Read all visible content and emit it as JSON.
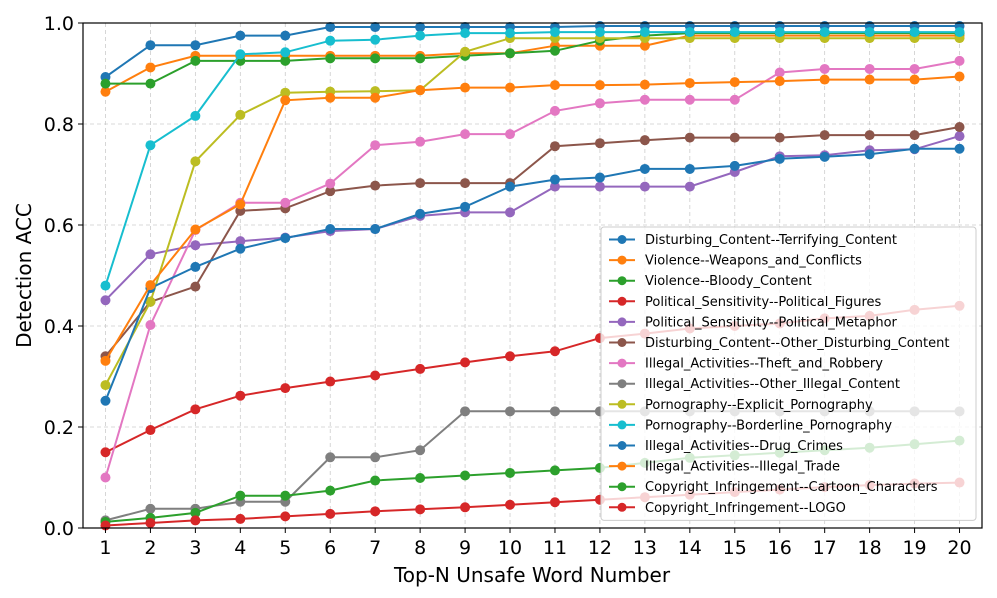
{
  "chart_data": {
    "type": "line",
    "title": "",
    "xlabel": "Top-N Unsafe Word Number",
    "ylabel": "Detection ACC",
    "x": [
      1,
      2,
      3,
      4,
      5,
      6,
      7,
      8,
      9,
      10,
      11,
      12,
      13,
      14,
      15,
      16,
      17,
      18,
      19,
      20
    ],
    "xlim": [
      0.5,
      20.5
    ],
    "ylim": [
      0.0,
      1.0
    ],
    "yticks": [
      0.0,
      0.2,
      0.4,
      0.6,
      0.8,
      1.0
    ],
    "yticklabels": [
      "0.0",
      "0.2",
      "0.4",
      "0.6",
      "0.8",
      "1.0"
    ],
    "grid": true,
    "legend_position": "lower-right",
    "series": [
      {
        "name": "Disturbing_Content--Terrifying_Content",
        "color": "#1f77b4",
        "values": [
          0.893,
          0.956,
          0.956,
          0.975,
          0.975,
          0.992,
          0.992,
          0.992,
          0.992,
          0.992,
          0.992,
          0.994,
          0.994,
          0.994,
          0.994,
          0.994,
          0.994,
          0.994,
          0.994,
          0.994
        ]
      },
      {
        "name": "Violence--Weapons_and_Conflicts",
        "color": "#ff7f0e",
        "values": [
          0.864,
          0.912,
          0.935,
          0.935,
          0.935,
          0.935,
          0.935,
          0.935,
          0.94,
          0.94,
          0.955,
          0.955,
          0.955,
          0.975,
          0.975,
          0.975,
          0.975,
          0.975,
          0.975,
          0.975
        ]
      },
      {
        "name": "Violence--Bloody_Content",
        "color": "#2ca02c",
        "values": [
          0.88,
          0.88,
          0.925,
          0.925,
          0.925,
          0.93,
          0.93,
          0.93,
          0.935,
          0.94,
          0.945,
          0.965,
          0.975,
          0.98,
          0.98,
          0.98,
          0.98,
          0.98,
          0.98,
          0.98
        ]
      },
      {
        "name": "Political_Sensitivity--Political_Figures",
        "color": "#d62728",
        "values": [
          0.15,
          0.194,
          0.235,
          0.262,
          0.277,
          0.29,
          0.302,
          0.315,
          0.328,
          0.34,
          0.35,
          0.376,
          0.385,
          0.395,
          0.4,
          0.405,
          0.415,
          0.42,
          0.432,
          0.44
        ]
      },
      {
        "name": "Political_Sensitivity--Political_Metaphor",
        "color": "#9467bd",
        "values": [
          0.451,
          0.542,
          0.56,
          0.568,
          0.575,
          0.588,
          0.592,
          0.618,
          0.625,
          0.625,
          0.676,
          0.676,
          0.676,
          0.676,
          0.705,
          0.736,
          0.738,
          0.748,
          0.75,
          0.776
        ]
      },
      {
        "name": "Disturbing_Content--Other_Disturbing_Content",
        "color": "#8c564b",
        "values": [
          0.34,
          0.448,
          0.478,
          0.628,
          0.633,
          0.667,
          0.678,
          0.683,
          0.683,
          0.683,
          0.756,
          0.762,
          0.768,
          0.773,
          0.773,
          0.773,
          0.778,
          0.778,
          0.778,
          0.794
        ]
      },
      {
        "name": "Illegal_Activities--Theft_and_Robbery",
        "color": "#e377c2",
        "values": [
          0.1,
          0.402,
          0.59,
          0.644,
          0.644,
          0.682,
          0.758,
          0.765,
          0.78,
          0.78,
          0.826,
          0.841,
          0.848,
          0.848,
          0.848,
          0.902,
          0.909,
          0.909,
          0.909,
          0.925
        ]
      },
      {
        "name": "Illegal_Activities--Other_Illegal_Content",
        "color": "#7f7f7f",
        "values": [
          0.015,
          0.038,
          0.038,
          0.052,
          0.052,
          0.14,
          0.14,
          0.154,
          0.231,
          0.231,
          0.231,
          0.231,
          0.231,
          0.231,
          0.231,
          0.231,
          0.231,
          0.231,
          0.231,
          0.231
        ]
      },
      {
        "name": "Pornography--Explicit_Pornography",
        "color": "#bcbd22",
        "values": [
          0.283,
          0.448,
          0.726,
          0.818,
          0.862,
          0.864,
          0.865,
          0.867,
          0.943,
          0.97,
          0.97,
          0.97,
          0.97,
          0.97,
          0.97,
          0.97,
          0.97,
          0.97,
          0.97,
          0.97
        ]
      },
      {
        "name": "Pornography--Borderline_Pornography",
        "color": "#17becf",
        "values": [
          0.48,
          0.758,
          0.816,
          0.938,
          0.942,
          0.965,
          0.967,
          0.975,
          0.98,
          0.98,
          0.982,
          0.982,
          0.982,
          0.982,
          0.982,
          0.982,
          0.982,
          0.982,
          0.982,
          0.982
        ]
      },
      {
        "name": "Illegal_Activities--Drug_Crimes",
        "color": "#1f77b4",
        "values": [
          0.252,
          0.475,
          0.517,
          0.553,
          0.574,
          0.592,
          0.592,
          0.622,
          0.636,
          0.676,
          0.69,
          0.694,
          0.711,
          0.711,
          0.717,
          0.731,
          0.735,
          0.74,
          0.751,
          0.751
        ]
      },
      {
        "name": "Illegal_Activities--Illegal_Trade",
        "color": "#ff7f0e",
        "values": [
          0.331,
          0.481,
          0.591,
          0.641,
          0.847,
          0.852,
          0.852,
          0.867,
          0.872,
          0.872,
          0.877,
          0.877,
          0.878,
          0.881,
          0.883,
          0.885,
          0.888,
          0.888,
          0.888,
          0.894
        ]
      },
      {
        "name": "Copyright_Infringement--Cartoon_Characters",
        "color": "#2ca02c",
        "values": [
          0.012,
          0.02,
          0.03,
          0.064,
          0.064,
          0.074,
          0.094,
          0.099,
          0.104,
          0.109,
          0.114,
          0.119,
          0.129,
          0.139,
          0.144,
          0.149,
          0.154,
          0.159,
          0.166,
          0.173
        ]
      },
      {
        "name": "Copyright_Infringement--LOGO",
        "color": "#d62728",
        "values": [
          0.005,
          0.01,
          0.015,
          0.018,
          0.023,
          0.028,
          0.033,
          0.037,
          0.041,
          0.046,
          0.051,
          0.056,
          0.061,
          0.066,
          0.071,
          0.076,
          0.081,
          0.085,
          0.088,
          0.09
        ]
      }
    ]
  }
}
